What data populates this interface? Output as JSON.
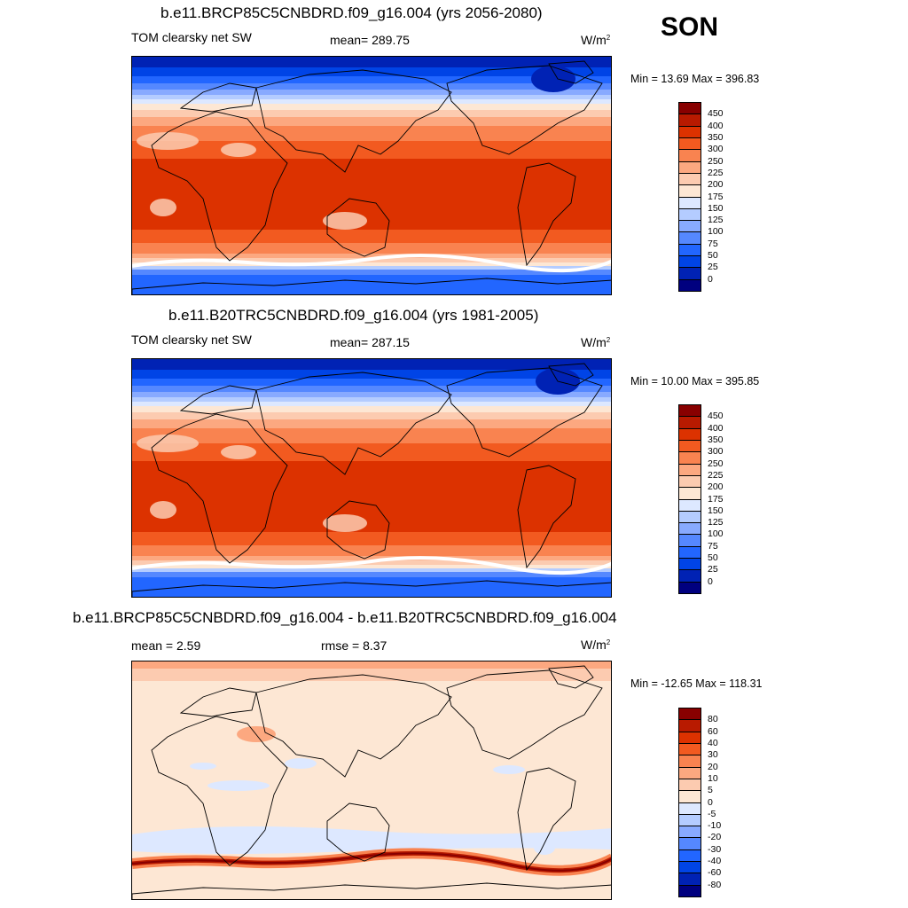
{
  "season": "SON",
  "panels": [
    {
      "title": "b.e11.BRCP85C5CNBDRD.f09_g16.004 (yrs 2056-2080)",
      "variable": "TOM clearsky net SW",
      "mean_label": "mean= 289.75",
      "units": "W/m",
      "units_sup": "2",
      "minmax": "Min =  13.69 Max = 396.83"
    },
    {
      "title": "b.e11.B20TRC5CNBDRD.f09_g16.004 (yrs 1981-2005)",
      "variable": "TOM clearsky net SW",
      "mean_label": "mean= 287.15",
      "units": "W/m",
      "units_sup": "2",
      "minmax": "Min =  10.00 Max = 395.85"
    },
    {
      "title": "b.e11.BRCP85C5CNBDRD.f09_g16.004 - b.e11.B20TRC5CNBDRD.f09_g16.004",
      "mean_label": "mean =   2.59",
      "rmse_label": "rmse =   8.37",
      "units": "W/m",
      "units_sup": "2",
      "minmax": "Min = -12.65 Max = 118.31"
    }
  ],
  "chart_data": [
    {
      "type": "heatmap",
      "title": "b.e11.BRCP85C5CNBDRD.f09_g16.004 (yrs 2056-2080)",
      "mean": 289.75,
      "min": 13.69,
      "max": 396.83,
      "colorbar_levels": [
        0,
        25,
        50,
        75,
        100,
        125,
        150,
        175,
        200,
        225,
        250,
        300,
        350,
        400,
        450
      ]
    },
    {
      "type": "heatmap",
      "title": "b.e11.B20TRC5CNBDRD.f09_g16.004 (yrs 1981-2005)",
      "mean": 287.15,
      "min": 10.0,
      "max": 395.85,
      "colorbar_levels": [
        0,
        25,
        50,
        75,
        100,
        125,
        150,
        175,
        200,
        225,
        250,
        300,
        350,
        400,
        450
      ]
    },
    {
      "type": "heatmap",
      "title": "b.e11.BRCP85C5CNBDRD.f09_g16.004 - b.e11.B20TRC5CNBDRD.f09_g16.004",
      "mean": 2.59,
      "rmse": 8.37,
      "min": -12.65,
      "max": 118.31,
      "colorbar_levels": [
        -80,
        -60,
        -40,
        -30,
        -20,
        -10,
        -5,
        0,
        5,
        10,
        20,
        30,
        40,
        60,
        80
      ]
    }
  ],
  "colors": {
    "abs_scale": [
      "#00007f",
      "#0022b4",
      "#0044e6",
      "#2266ff",
      "#5588ff",
      "#88aaff",
      "#b4ccff",
      "#dde8ff",
      "#fde7d4",
      "#fccbb0",
      "#fca880",
      "#f98350",
      "#f25a20",
      "#dc3200",
      "#b81a00",
      "#880000"
    ],
    "diff_scale": [
      "#00007f",
      "#0022b4",
      "#0044e6",
      "#2266ff",
      "#5588ff",
      "#88aaff",
      "#b4ccff",
      "#dde8ff",
      "#fde7d4",
      "#fccbb0",
      "#fca880",
      "#f98350",
      "#f25a20",
      "#dc3200",
      "#b81a00",
      "#880000"
    ]
  }
}
